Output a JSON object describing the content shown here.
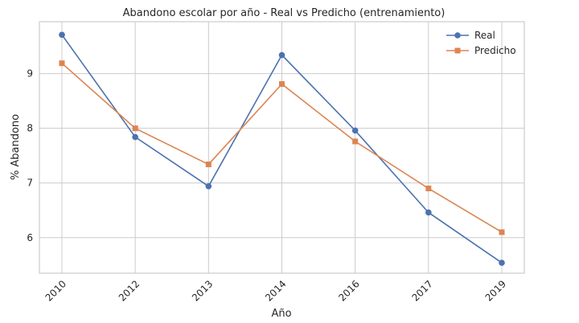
{
  "chart_data": {
    "type": "line",
    "title": "Abandono escolar por año - Real vs Predicho (entrenamiento)",
    "xlabel": "Año",
    "ylabel": "% Abandono",
    "categories": [
      "2010",
      "2012",
      "2013",
      "2014",
      "2016",
      "2017",
      "2019"
    ],
    "ylim": [
      5.35,
      9.95
    ],
    "yticks": [
      6,
      7,
      8,
      9
    ],
    "grid": true,
    "legend_position": "top-right",
    "series": [
      {
        "name": "Real",
        "marker": "circle",
        "color": "#4c72b0",
        "values": [
          9.71,
          7.84,
          6.94,
          9.34,
          7.96,
          6.46,
          5.54
        ]
      },
      {
        "name": "Predicho",
        "marker": "square",
        "color": "#dd8452",
        "values": [
          9.19,
          8.0,
          7.34,
          8.81,
          7.76,
          6.9,
          6.1
        ]
      }
    ]
  }
}
